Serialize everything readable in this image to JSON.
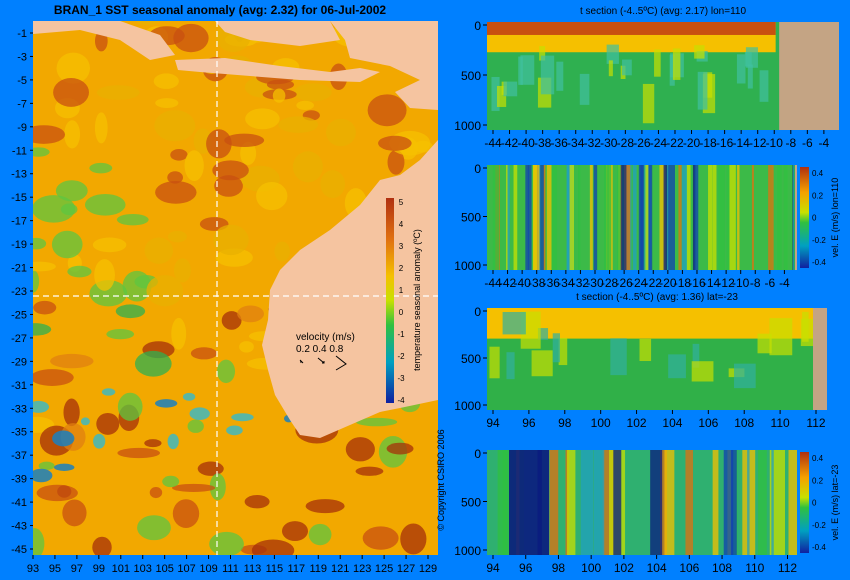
{
  "map": {
    "title": "BRAN_1 SST seasonal anomaly (avg: 2.32) for 06-Jul-2002",
    "y_ticks": [
      "-1",
      "-3",
      "-5",
      "-7",
      "-9",
      "-11",
      "-13",
      "-15",
      "-17",
      "-19",
      "-21",
      "-23",
      "-25",
      "-27",
      "-29",
      "-31",
      "-33",
      "-35",
      "-37",
      "-39",
      "-41",
      "-43",
      "-45"
    ],
    "x_ticks": [
      "93",
      "95",
      "97",
      "99",
      "101",
      "103",
      "105",
      "107",
      "109",
      "111",
      "113",
      "115",
      "117",
      "119",
      "121",
      "123",
      "125",
      "127",
      "129"
    ],
    "colorbar_label": "temperature seasonal anomaly (ºC)",
    "colorbar_ticks": [
      "5",
      "4",
      "3",
      "2",
      "1",
      "0",
      "-1",
      "-2",
      "-3",
      "-4"
    ],
    "velocity_label": "velocity (m/s)",
    "velocity_scale": "0.2 0.4 0.8",
    "copyright": "© Copyright CSIRO 2006",
    "crosshair_lon": 110,
    "crosshair_lat": -23
  },
  "panels": [
    {
      "title": "t section (-4..5ºC) (avg: 2.17) lon=110",
      "y_ticks": [
        "0",
        "500",
        "1000"
      ],
      "x_ticks": [
        "-44",
        "-42",
        "-40",
        "-38",
        "-36",
        "-34",
        "-32",
        "-30",
        "-28",
        "-26",
        "-24",
        "-22",
        "-20",
        "-18",
        "-16",
        "-14",
        "-12",
        "-10",
        "-8",
        "-6",
        "-4"
      ],
      "colorbar": null
    },
    {
      "title": "",
      "y_ticks": [
        "0",
        "500",
        "1000"
      ],
      "x_ticks": [
        "-44",
        "-42",
        "-40",
        "-38",
        "-36",
        "-34",
        "-32",
        "-30",
        "-28",
        "-26",
        "-24",
        "-22",
        "-20",
        "-18",
        "-16",
        "-14",
        "-12",
        "-10",
        "-8",
        "-6",
        "-4"
      ],
      "colorbar": {
        "label": "vel. E (m/s) lon=110",
        "ticks": [
          "0.4",
          "0.2",
          "0",
          "-0.2",
          "-0.4"
        ]
      }
    },
    {
      "title": "t section (-4..5ºC) (avg: 1.36) lat=-23",
      "y_ticks": [
        "0",
        "500",
        "1000"
      ],
      "x_ticks": [
        "94",
        "96",
        "98",
        "100",
        "102",
        "104",
        "106",
        "108",
        "110",
        "112"
      ],
      "colorbar": null
    },
    {
      "title": "",
      "y_ticks": [
        "0",
        "500",
        "1000"
      ],
      "x_ticks": [
        "94",
        "96",
        "98",
        "100",
        "102",
        "104",
        "106",
        "108",
        "110",
        "112"
      ],
      "colorbar": {
        "label": "vel. E (m/s) lat=-23",
        "ticks": [
          "0.4",
          "0.2",
          "0",
          "-0.2",
          "-0.4"
        ]
      }
    }
  ],
  "colors": {
    "background": "#0080ff",
    "land": "#f5c4a0",
    "section_land": "#c4a484",
    "anomaly_warm": "#f2a800",
    "anomaly_hot": "#a5300a",
    "anomaly_neutral": "#5ec640"
  },
  "chart_data": [
    {
      "type": "heatmap",
      "title": "BRAN_1 SST seasonal anomaly (avg: 2.32) for 06-Jul-2002",
      "xlabel": "",
      "ylabel": "",
      "xlim": [
        93,
        130
      ],
      "ylim": [
        -45,
        0
      ],
      "colorbar_range": [
        -4,
        5
      ],
      "average": 2.32
    },
    {
      "type": "heatmap",
      "title": "t section (-4..5ºC) (avg: 2.17) lon=110",
      "xlim": [
        -45,
        -3
      ],
      "ylim": [
        1050,
        0
      ],
      "average": 2.17
    },
    {
      "type": "heatmap",
      "title": "",
      "xlim": [
        -45,
        -3
      ],
      "ylim": [
        1050,
        0
      ],
      "colorbar_range": [
        -0.4,
        0.4
      ]
    },
    {
      "type": "heatmap",
      "title": "t section (-4..5ºC) (avg: 1.36) lat=-23",
      "xlim": [
        92.5,
        113.5
      ],
      "ylim": [
        1050,
        0
      ],
      "average": 1.36
    },
    {
      "type": "heatmap",
      "title": "",
      "xlim": [
        92.5,
        113.5
      ],
      "ylim": [
        1050,
        0
      ],
      "colorbar_range": [
        -0.4,
        0.4
      ]
    }
  ]
}
